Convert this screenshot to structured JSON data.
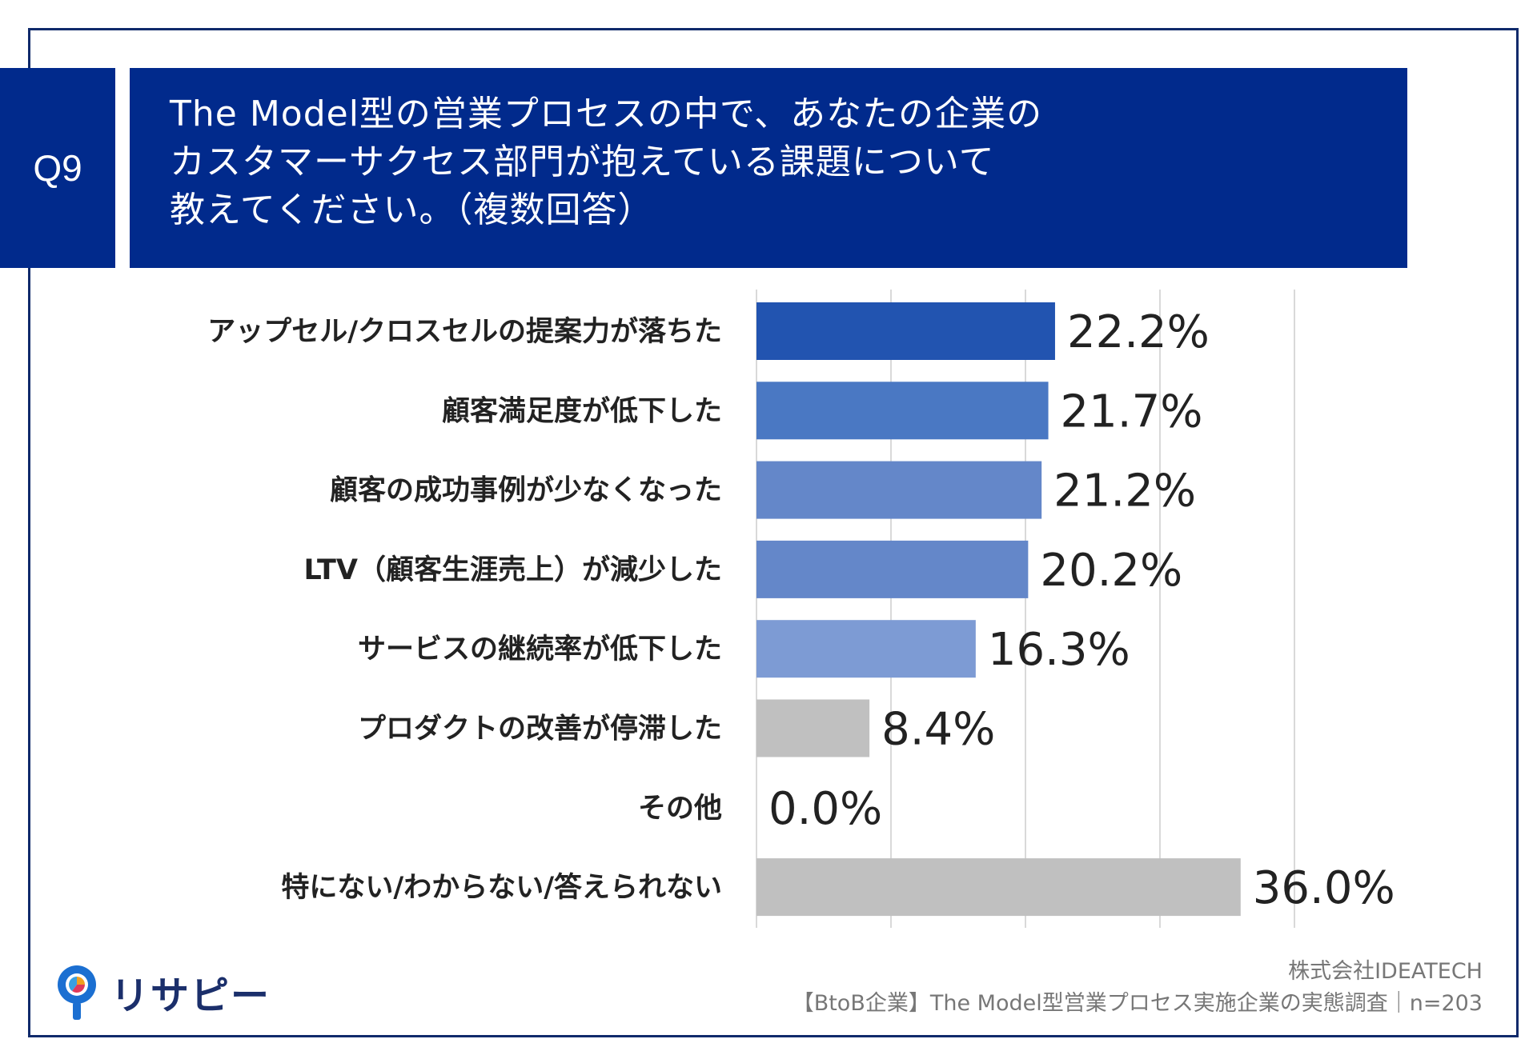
{
  "header": {
    "q_label": "Q9",
    "title_lines": [
      "The Model型の営業プロセスの中で、あなたの企業の",
      "カスタマーサクセス部門が抱えている課題について",
      "教えてください。（複数回答）"
    ]
  },
  "colors": {
    "header_bg": "#012a8c",
    "bars": [
      "#2254b0",
      "#4a78c3",
      "#6487c9",
      "#6487c9",
      "#7d9bd4",
      "#c0c0c0",
      "#c0c0c0",
      "#c0c0c0"
    ]
  },
  "chart_data": {
    "type": "bar",
    "orientation": "horizontal",
    "categories": [
      "アップセル/クロスセルの提案力が落ちた",
      "顧客満足度が低下した",
      "顧客の成功事例が少なくなった",
      "LTV（顧客生涯売上）が減少した",
      "サービスの継続率が低下した",
      "プロダクトの改善が停滞した",
      "その他",
      "特にない/わからない/答えられない"
    ],
    "values": [
      22.2,
      21.7,
      21.2,
      20.2,
      16.3,
      8.4,
      0.0,
      36.0
    ],
    "value_labels": [
      "22.2%",
      "21.7%",
      "21.2%",
      "20.2%",
      "16.3%",
      "8.4%",
      "0.0%",
      "36.0%"
    ],
    "xlim": [
      0,
      40
    ],
    "grid": true,
    "gridlines_at": [
      0,
      10,
      20,
      30,
      40
    ],
    "title": "",
    "xlabel": "",
    "ylabel": ""
  },
  "footer": {
    "logo_text": "リサピー",
    "company": "株式会社IDEATECH",
    "survey": "【BtoB企業】The Model型営業プロセス実施企業の実態調査｜n=203"
  }
}
